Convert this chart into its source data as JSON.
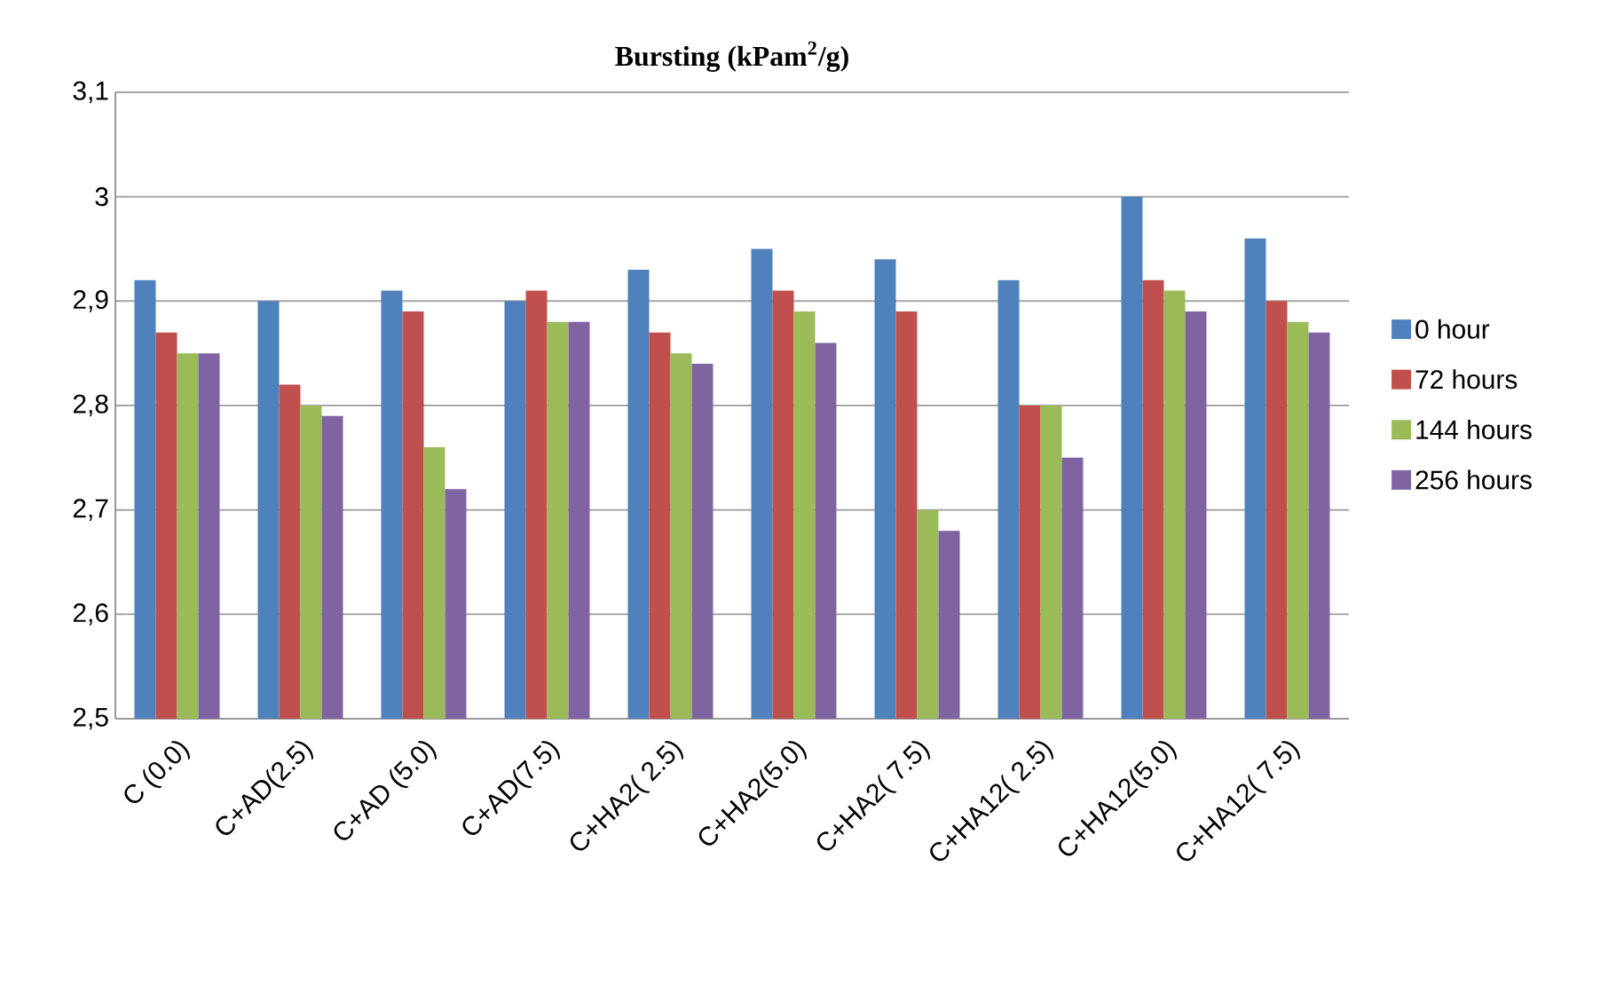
{
  "chart_data": {
    "type": "bar",
    "title": "Bursting (kPam$^{2}$/g)",
    "categories": [
      "C (0.0)",
      "C+AD(2.5)",
      "C+AD (5.0)",
      "C+AD(7.5)",
      "C+HA2( 2.5)",
      "C+HA2(5.0)",
      "C+HA2( 7.5)",
      "C+HA12( 2.5)",
      "C+HA12(5.0)",
      "C+HA12( 7.5)"
    ],
    "series": [
      {
        "name": "0 hour",
        "color": "#4f81bd",
        "values": [
          2.92,
          2.9,
          2.91,
          2.9,
          2.93,
          2.95,
          2.94,
          2.92,
          3.0,
          2.96
        ]
      },
      {
        "name": "72 hours",
        "color": "#c0504d",
        "values": [
          2.87,
          2.82,
          2.89,
          2.91,
          2.87,
          2.91,
          2.89,
          2.8,
          2.92,
          2.9
        ]
      },
      {
        "name": "144 hours",
        "color": "#9bbb59",
        "values": [
          2.85,
          2.8,
          2.76,
          2.88,
          2.85,
          2.89,
          2.7,
          2.8,
          2.91,
          2.88
        ]
      },
      {
        "name": "256 hours",
        "color": "#8064a2",
        "values": [
          2.85,
          2.79,
          2.72,
          2.88,
          2.84,
          2.86,
          2.68,
          2.75,
          2.89,
          2.87
        ]
      }
    ],
    "ylim": [
      2.5,
      3.1
    ],
    "yticks": [
      {
        "value": 2.5,
        "label": "2,5"
      },
      {
        "value": 2.6,
        "label": "2,6"
      },
      {
        "value": 2.7,
        "label": "2,7"
      },
      {
        "value": 2.8,
        "label": "2,8"
      },
      {
        "value": 2.9,
        "label": "2,9"
      },
      {
        "value": 3,
        "label": "3"
      },
      {
        "value": 3.1,
        "label": "3,1"
      }
    ],
    "grid": "y",
    "legend": "right"
  }
}
